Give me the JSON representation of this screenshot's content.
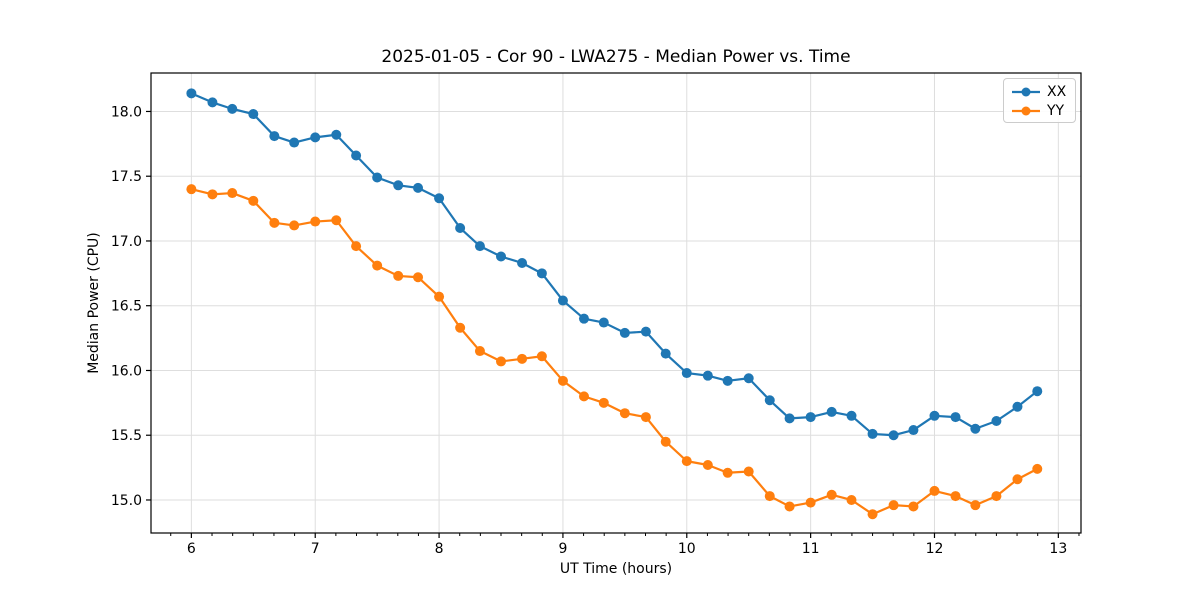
{
  "chart_data": {
    "type": "line",
    "title": "2025-01-05 - Cor 90 - LWA275 - Median Power vs. Time",
    "xlabel": "UT Time (hours)",
    "ylabel": "Median Power (CPU)",
    "grid": true,
    "legend_position": "upper right",
    "marker": "o",
    "xlim": [
      5.674,
      13.183
    ],
    "ylim": [
      14.745,
      18.297
    ],
    "xticks": [
      6,
      7,
      8,
      9,
      10,
      11,
      12,
      13
    ],
    "x_tick_labels": [
      "6",
      "7",
      "8",
      "9",
      "10",
      "11",
      "12",
      "13"
    ],
    "yticks": [
      15.0,
      15.5,
      16.0,
      16.5,
      17.0,
      17.5,
      18.0
    ],
    "y_tick_labels": [
      "15.0",
      "15.5",
      "16.0",
      "16.5",
      "17.0",
      "17.5",
      "18.0"
    ],
    "x_minor_tick_step": 0.1667,
    "x": [
      6.0,
      6.17,
      6.33,
      6.5,
      6.67,
      6.83,
      7.0,
      7.17,
      7.33,
      7.5,
      7.67,
      7.83,
      8.0,
      8.17,
      8.33,
      8.5,
      8.67,
      8.83,
      9.0,
      9.17,
      9.33,
      9.5,
      9.67,
      9.83,
      10.0,
      10.17,
      10.33,
      10.5,
      10.67,
      10.83,
      11.0,
      11.17,
      11.33,
      11.5,
      11.67,
      11.83,
      12.0,
      12.17,
      12.33,
      12.5,
      12.67,
      12.83
    ],
    "series": [
      {
        "name": "XX",
        "color": "#1f77b4",
        "values": [
          18.14,
          18.07,
          18.02,
          17.98,
          17.81,
          17.76,
          17.8,
          17.82,
          17.66,
          17.49,
          17.43,
          17.41,
          17.33,
          17.1,
          16.96,
          16.88,
          16.83,
          16.75,
          16.54,
          16.4,
          16.37,
          16.29,
          16.3,
          16.13,
          15.98,
          15.96,
          15.92,
          15.94,
          15.77,
          15.63,
          15.64,
          15.68,
          15.65,
          15.51,
          15.5,
          15.54,
          15.65,
          15.64,
          15.55,
          15.61,
          15.72,
          15.84
        ]
      },
      {
        "name": "YY",
        "color": "#ff7f0e",
        "values": [
          17.4,
          17.36,
          17.37,
          17.31,
          17.14,
          17.12,
          17.15,
          17.16,
          16.96,
          16.81,
          16.73,
          16.72,
          16.57,
          16.33,
          16.15,
          16.07,
          16.09,
          16.11,
          15.92,
          15.8,
          15.75,
          15.67,
          15.64,
          15.45,
          15.3,
          15.27,
          15.21,
          15.22,
          15.03,
          14.95,
          14.98,
          15.04,
          15.0,
          14.89,
          14.96,
          14.95,
          15.07,
          15.03,
          14.96,
          15.03,
          15.16,
          15.24
        ]
      }
    ]
  }
}
